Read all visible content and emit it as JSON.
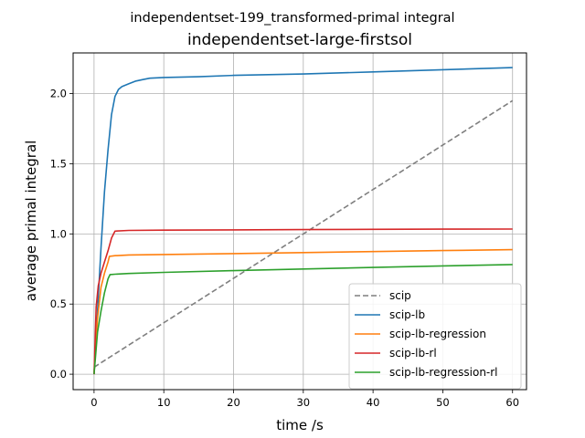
{
  "chart_data": {
    "type": "line",
    "suptitle": "independentset-199_transformed-primal integral",
    "title": "independentset-large-firstsol",
    "xlabel": "time /s",
    "ylabel": "average primal integral",
    "xlim": [
      -3,
      62
    ],
    "ylim": [
      -0.11,
      2.29
    ],
    "xticks": [
      0,
      10,
      20,
      30,
      40,
      50,
      60
    ],
    "yticks": [
      0.0,
      0.5,
      1.0,
      1.5,
      2.0
    ],
    "xtick_labels": [
      "0",
      "10",
      "20",
      "30",
      "40",
      "50",
      "60"
    ],
    "ytick_labels": [
      "0.0",
      "0.5",
      "1.0",
      "1.5",
      "2.0"
    ],
    "grid": true,
    "legend_position": "bottom-right",
    "series": [
      {
        "name": "scip",
        "color": "#7f7f7f",
        "dash": true,
        "x": [
          0,
          60
        ],
        "y": [
          0.05,
          1.95
        ]
      },
      {
        "name": "scip-lb",
        "color": "#1f77b4",
        "dash": false,
        "x": [
          0,
          0.5,
          1,
          1.5,
          2,
          2.5,
          3,
          3.5,
          4,
          5,
          6,
          7,
          8,
          10,
          15,
          20,
          30,
          40,
          50,
          60
        ],
        "y": [
          0.0,
          0.45,
          0.9,
          1.3,
          1.6,
          1.85,
          1.98,
          2.03,
          2.05,
          2.07,
          2.09,
          2.1,
          2.11,
          2.115,
          2.12,
          2.13,
          2.14,
          2.155,
          2.17,
          2.185
        ]
      },
      {
        "name": "scip-lb-regression",
        "color": "#ff7f0e",
        "dash": false,
        "x": [
          0,
          0.5,
          1,
          1.5,
          2,
          2.2,
          3,
          5,
          10,
          20,
          30,
          40,
          50,
          60
        ],
        "y": [
          0.0,
          0.4,
          0.62,
          0.72,
          0.8,
          0.84,
          0.845,
          0.85,
          0.853,
          0.86,
          0.867,
          0.874,
          0.881,
          0.888
        ]
      },
      {
        "name": "scip-lb-rl",
        "color": "#d62728",
        "dash": false,
        "x": [
          0,
          0.3,
          0.6,
          1,
          1.5,
          2,
          2.5,
          3,
          5,
          10,
          20,
          30,
          40,
          50,
          60
        ],
        "y": [
          0.0,
          0.48,
          0.63,
          0.72,
          0.8,
          0.88,
          0.97,
          1.02,
          1.025,
          1.027,
          1.029,
          1.031,
          1.033,
          1.034,
          1.035
        ]
      },
      {
        "name": "scip-lb-regression-rl",
        "color": "#2ca02c",
        "dash": false,
        "x": [
          0,
          0.5,
          1,
          1.5,
          2,
          2.3,
          3,
          5,
          10,
          20,
          30,
          40,
          50,
          60
        ],
        "y": [
          0.0,
          0.3,
          0.45,
          0.58,
          0.68,
          0.71,
          0.713,
          0.718,
          0.726,
          0.738,
          0.75,
          0.761,
          0.772,
          0.782
        ]
      }
    ]
  }
}
